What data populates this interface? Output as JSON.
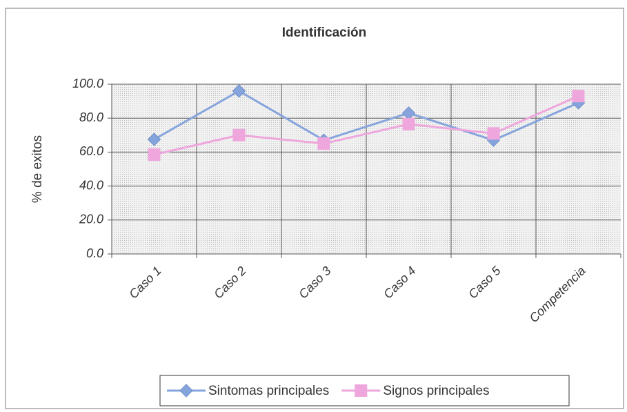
{
  "chart_data": {
    "type": "line",
    "title": "Identificación",
    "ylabel": "% de exitos",
    "categories": [
      "Caso 1",
      "Caso 2",
      "Caso 3",
      "Caso 4",
      "Caso 5",
      "Competencia"
    ],
    "series": [
      {
        "name": "Sintomas principales",
        "color": "#86a4dc",
        "marker": "diamond",
        "values": [
          67.5,
          96,
          67,
          83,
          67,
          89
        ]
      },
      {
        "name": "Signos principales",
        "color": "#eea6dc",
        "marker": "square",
        "values": [
          58.5,
          70,
          65,
          76.5,
          71,
          93
        ]
      }
    ],
    "ylim": [
      0,
      100
    ],
    "yticks": [
      {
        "value": 0,
        "label": "0.0"
      },
      {
        "value": 20,
        "label": "20.0"
      },
      {
        "value": 40,
        "label": "40.0"
      },
      {
        "value": 60,
        "label": "60.0"
      },
      {
        "value": 80,
        "label": "80.0"
      },
      {
        "value": 100,
        "label": "100.0"
      }
    ],
    "grid": true,
    "legend": "bottom"
  }
}
